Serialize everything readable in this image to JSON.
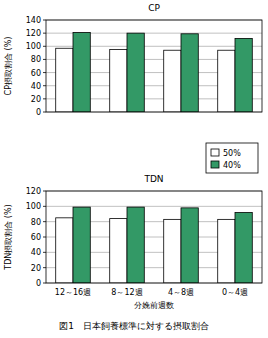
{
  "chart_data": [
    {
      "type": "bar",
      "title": "CP",
      "y_label": "CP摂取割合 (%)",
      "categories": [
        "12～16週",
        "8～12週",
        "4～8週",
        "0～4週"
      ],
      "series": [
        {
          "name": "50%",
          "color": "#ffffff",
          "values": [
            97,
            95,
            94,
            94
          ]
        },
        {
          "name": "40%",
          "color": "#339966",
          "values": [
            121,
            120,
            119,
            112
          ]
        }
      ],
      "ylim": [
        0,
        140
      ],
      "yticks": [
        0,
        20,
        40,
        60,
        80,
        100,
        120,
        140
      ],
      "grid": true,
      "legend": "right",
      "tick_labels": "y"
    },
    {
      "type": "bar",
      "title": "TDN",
      "y_label": "TDN摂取割合 (%)",
      "x_label": "分娩前週数",
      "categories": [
        "12～16週",
        "8～12週",
        "4～8週",
        "0～4週"
      ],
      "series": [
        {
          "name": "50%",
          "color": "#ffffff",
          "values": [
            85,
            84,
            83,
            83
          ]
        },
        {
          "name": "40%",
          "color": "#339966",
          "values": [
            99,
            99,
            98,
            92
          ]
        }
      ],
      "ylim": [
        0,
        120
      ],
      "yticks": [
        0,
        20,
        40,
        60,
        80,
        100,
        120
      ],
      "grid": true
    }
  ],
  "caption": "図1　日本飼養標準に対する摂取割合"
}
